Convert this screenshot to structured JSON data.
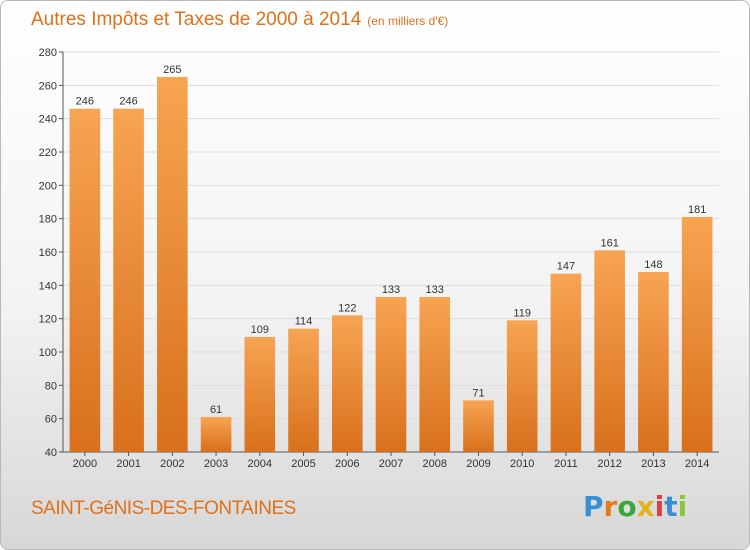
{
  "title": "Autres Impôts et Taxes de 2000 à 2014",
  "subtitle": "(en milliers d'€)",
  "commune": "SAINT-GéNIS-DES-FONTAINES",
  "logo": {
    "letters": [
      "P",
      "r",
      "o",
      "x",
      "i",
      "t",
      "i"
    ],
    "colors": [
      "#3a8fd1",
      "#e37a1c",
      "#3aa63a",
      "#e2b219",
      "#d94040",
      "#3a8fd1",
      "#8dc43a"
    ]
  },
  "colors": {
    "bar_top": "#f7a453",
    "bar_bottom": "#d8701c",
    "grid": "#dddddd",
    "accent": "#e0701a"
  },
  "chart_data": {
    "type": "bar",
    "title": "Autres Impôts et Taxes de 2000 à 2014",
    "subtitle": "(en milliers d'€)",
    "xlabel": "",
    "ylabel": "",
    "categories": [
      "2000",
      "2001",
      "2002",
      "2003",
      "2004",
      "2005",
      "2006",
      "2007",
      "2008",
      "2009",
      "2010",
      "2011",
      "2012",
      "2013",
      "2014"
    ],
    "values": [
      246,
      246,
      265,
      61,
      109,
      114,
      122,
      133,
      133,
      71,
      119,
      147,
      161,
      148,
      181
    ],
    "ylim": [
      40,
      280
    ],
    "yticks": [
      40,
      60,
      80,
      100,
      120,
      140,
      160,
      180,
      200,
      220,
      240,
      260,
      280
    ],
    "grid": true,
    "legend": "none"
  }
}
